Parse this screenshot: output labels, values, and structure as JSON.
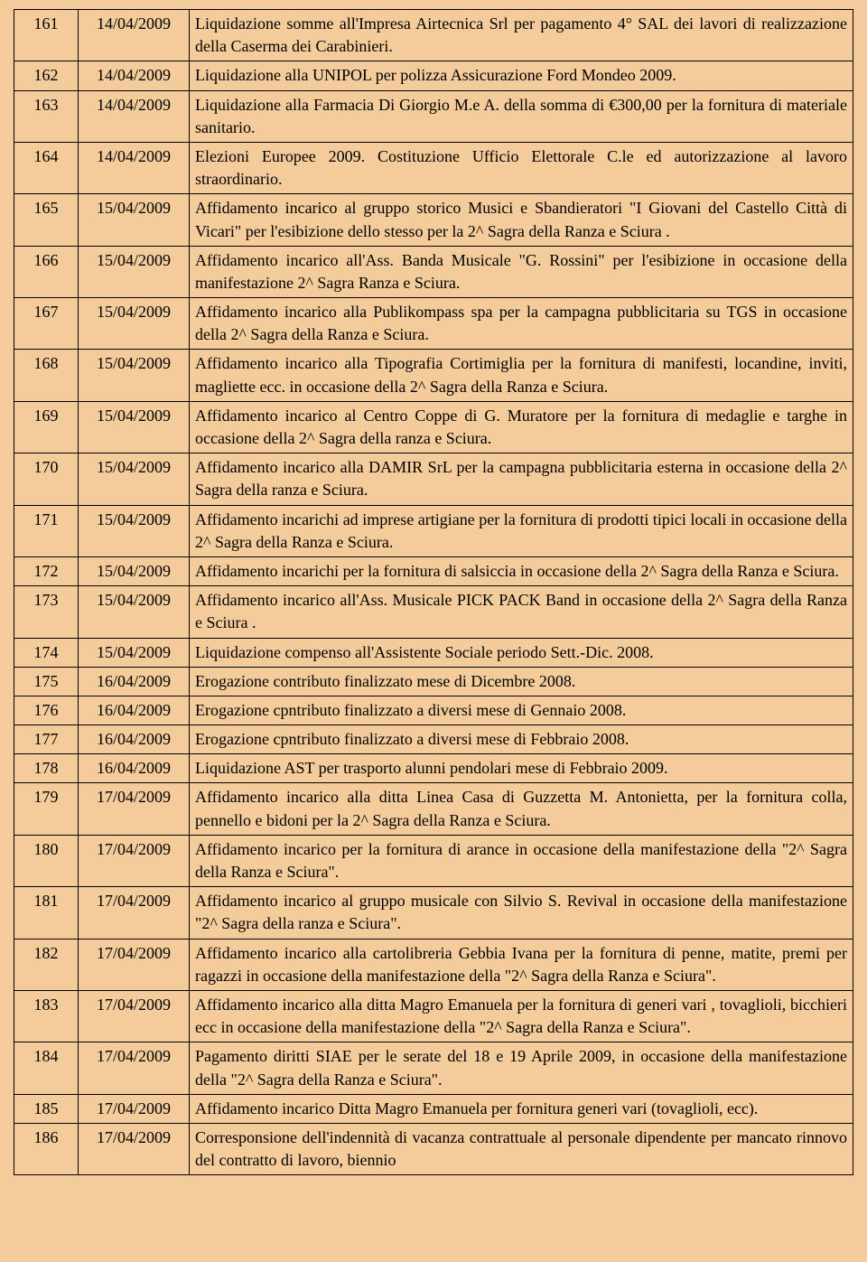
{
  "rows": [
    {
      "n": "161",
      "d": "14/04/2009",
      "t": "Liquidazione somme all'Impresa Airtecnica Srl per pagamento 4° SAL dei lavori di realizzazione della Caserma dei Carabinieri."
    },
    {
      "n": "162",
      "d": "14/04/2009",
      "t": "Liquidazione alla UNIPOL per polizza Assicurazione Ford Mondeo 2009."
    },
    {
      "n": "163",
      "d": "14/04/2009",
      "t": "Liquidazione alla Farmacia Di Giorgio M.e A. della somma di €300,00 per la fornitura di materiale sanitario."
    },
    {
      "n": "164",
      "d": "14/04/2009",
      "t": "Elezioni Europee 2009. Costituzione Ufficio Elettorale C.le ed autorizzazione al lavoro straordinario."
    },
    {
      "n": "165",
      "d": "15/04/2009",
      "t": "Affidamento incarico al gruppo storico Musici e Sbandieratori \"I Giovani del Castello Città di Vicari\" per l'esibizione dello stesso per la 2^ Sagra della Ranza e Sciura ."
    },
    {
      "n": "166",
      "d": "15/04/2009",
      "t": "Affidamento incarico all'Ass. Banda Musicale \"G. Rossini\" per l'esibizione in occasione della manifestazione  2^ Sagra Ranza e Sciura."
    },
    {
      "n": "167",
      "d": "15/04/2009",
      "t": "Affidamento incarico alla Publikompass spa per la campagna pubblicitaria su TGS in occasione della 2^ Sagra della Ranza e Sciura."
    },
    {
      "n": "168",
      "d": "15/04/2009",
      "t": "Affidamento incarico alla Tipografia Cortimiglia per la fornitura di manifesti, locandine, inviti, magliette ecc. in occasione della 2^ Sagra della Ranza e Sciura."
    },
    {
      "n": "169",
      "d": "15/04/2009",
      "t": "Affidamento incarico al Centro Coppe di G. Muratore per la fornitura di medaglie e targhe in occasione della 2^ Sagra della ranza e Sciura."
    },
    {
      "n": "170",
      "d": "15/04/2009",
      "t": "Affidamento incarico alla DAMIR SrL per la campagna pubblicitaria esterna in occasione della 2^ Sagra della ranza e Sciura."
    },
    {
      "n": "171",
      "d": "15/04/2009",
      "t": "Affidamento incarichi ad imprese artigiane per la fornitura di prodotti tipici locali in occasione della 2^ Sagra della Ranza e Sciura."
    },
    {
      "n": "172",
      "d": "15/04/2009",
      "t": "Affidamento incarichi per la fornitura di salsiccia in occasione della 2^ Sagra della Ranza e Sciura."
    },
    {
      "n": "173",
      "d": "15/04/2009",
      "t": "Affidamento incarico all'Ass. Musicale PICK PACK Band in occasione della 2^ Sagra della Ranza e Sciura ."
    },
    {
      "n": "174",
      "d": "15/04/2009",
      "t": "Liquidazione compenso all'Assistente Sociale  periodo Sett.-Dic. 2008."
    },
    {
      "n": "175",
      "d": "16/04/2009",
      "t": "Erogazione contributo finalizzato mese di Dicembre 2008."
    },
    {
      "n": "176",
      "d": "16/04/2009",
      "t": "Erogazione cpntributo finalizzato a diversi mese di Gennaio 2008."
    },
    {
      "n": "177",
      "d": "16/04/2009",
      "t": "Erogazione cpntributo finalizzato a diversi mese di Febbraio 2008."
    },
    {
      "n": "178",
      "d": "16/04/2009",
      "t": "Liquidazione AST per trasporto alunni pendolari mese di Febbraio 2009."
    },
    {
      "n": "179",
      "d": "17/04/2009",
      "t": "Affidamento incarico alla ditta Linea Casa di Guzzetta M. Antonietta, per la fornitura colla, pennello e bidoni per la 2^ Sagra della Ranza e Sciura."
    },
    {
      "n": "180",
      "d": "17/04/2009",
      "t": "Affidamento incarico per la fornitura di arance in occasione della manifestazione della \"2^ Sagra della Ranza e Sciura\"."
    },
    {
      "n": "181",
      "d": "17/04/2009",
      "t": "Affidamento incarico al gruppo musicale con Silvio S. Revival in occasione della manifestazione \"2^ Sagra della ranza e Sciura\"."
    },
    {
      "n": "182",
      "d": "17/04/2009",
      "t": "Affidamento incarico alla cartolibreria Gebbia Ivana per la fornitura di penne, matite, premi per ragazzi in occasione della  manifestazione della \"2^ Sagra della Ranza e Sciura\"."
    },
    {
      "n": "183",
      "d": "17/04/2009",
      "t": "Affidamento incarico alla ditta Magro Emanuela per la fornitura di generi vari , tovaglioli, bicchieri ecc in occasione della  manifestazione della \"2^ Sagra della Ranza e Sciura\"."
    },
    {
      "n": "184",
      "d": "17/04/2009",
      "t": "Pagamento diritti SIAE per le serate del 18 e 19 Aprile 2009, in occasione della  manifestazione della \"2^ Sagra della Ranza e Sciura\"."
    },
    {
      "n": "185",
      "d": "17/04/2009",
      "t": "Affidamento incarico Ditta Magro Emanuela per fornitura generi vari (tovaglioli, ecc)."
    },
    {
      "n": "186",
      "d": "17/04/2009",
      "t": "Corresponsione dell'indennità di vacanza contrattuale al personale dipendente per mancato rinnovo del contratto di lavoro, biennio"
    }
  ]
}
